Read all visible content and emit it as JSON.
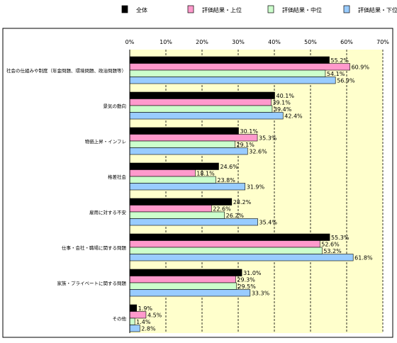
{
  "chart_data": {
    "type": "bar",
    "orientation": "horizontal",
    "categories": [
      "社会の仕組みや制度（年金問題、環境問題、政治問題等）",
      "景気の動向",
      "物価上昇・インフレ",
      "格差社会",
      "雇用に対する不安",
      "仕事・会社・職場に関する問題",
      "家族・プライベートに関する問題",
      "その他"
    ],
    "series": [
      {
        "name": "全体",
        "color": "#000000",
        "values": [
          55.2,
          40.1,
          30.1,
          24.6,
          28.2,
          55.3,
          31.0,
          1.9
        ]
      },
      {
        "name": "評価結果・上位",
        "color": "#ff99cc",
        "values": [
          60.9,
          39.1,
          35.3,
          18.1,
          22.6,
          52.6,
          29.3,
          4.5
        ]
      },
      {
        "name": "評価結果・中位",
        "color": "#ccffcc",
        "values": [
          54.1,
          39.4,
          29.1,
          23.8,
          26.2,
          53.2,
          29.5,
          1.4
        ]
      },
      {
        "name": "評価結果・下位",
        "color": "#99ccff",
        "values": [
          56.9,
          42.4,
          32.6,
          31.9,
          35.4,
          61.8,
          33.3,
          2.8
        ]
      }
    ],
    "value_labels": [
      [
        "55.2%",
        "40.1%",
        "30.1%",
        "24.6%",
        "28.2%",
        "55.3%",
        "31.0%",
        "1.9%"
      ],
      [
        "60.9%",
        "39.1%",
        "35.3%",
        "18.1%",
        "22.6%",
        "52.6%",
        "29.3%",
        "4.5%"
      ],
      [
        "54.1%",
        "39.4%",
        "29.1%",
        "23.8%",
        "26.2%",
        "53.2%",
        "29.5%",
        "1.4%"
      ],
      [
        "56.9%",
        "42.4%",
        "32.6%",
        "31.9%",
        "35.4%",
        "61.8%",
        "33.3%",
        "2.8%"
      ]
    ],
    "xlim": [
      0,
      70
    ],
    "ticks": [
      0,
      10,
      20,
      30,
      40,
      50,
      60,
      70
    ],
    "tick_labels": [
      "0%",
      "10%",
      "20%",
      "30%",
      "40%",
      "50%",
      "60%",
      "70%"
    ],
    "grid": true,
    "legend_position": "top",
    "plot_background": "#ffffcc",
    "title": "",
    "xlabel": "",
    "ylabel": ""
  }
}
